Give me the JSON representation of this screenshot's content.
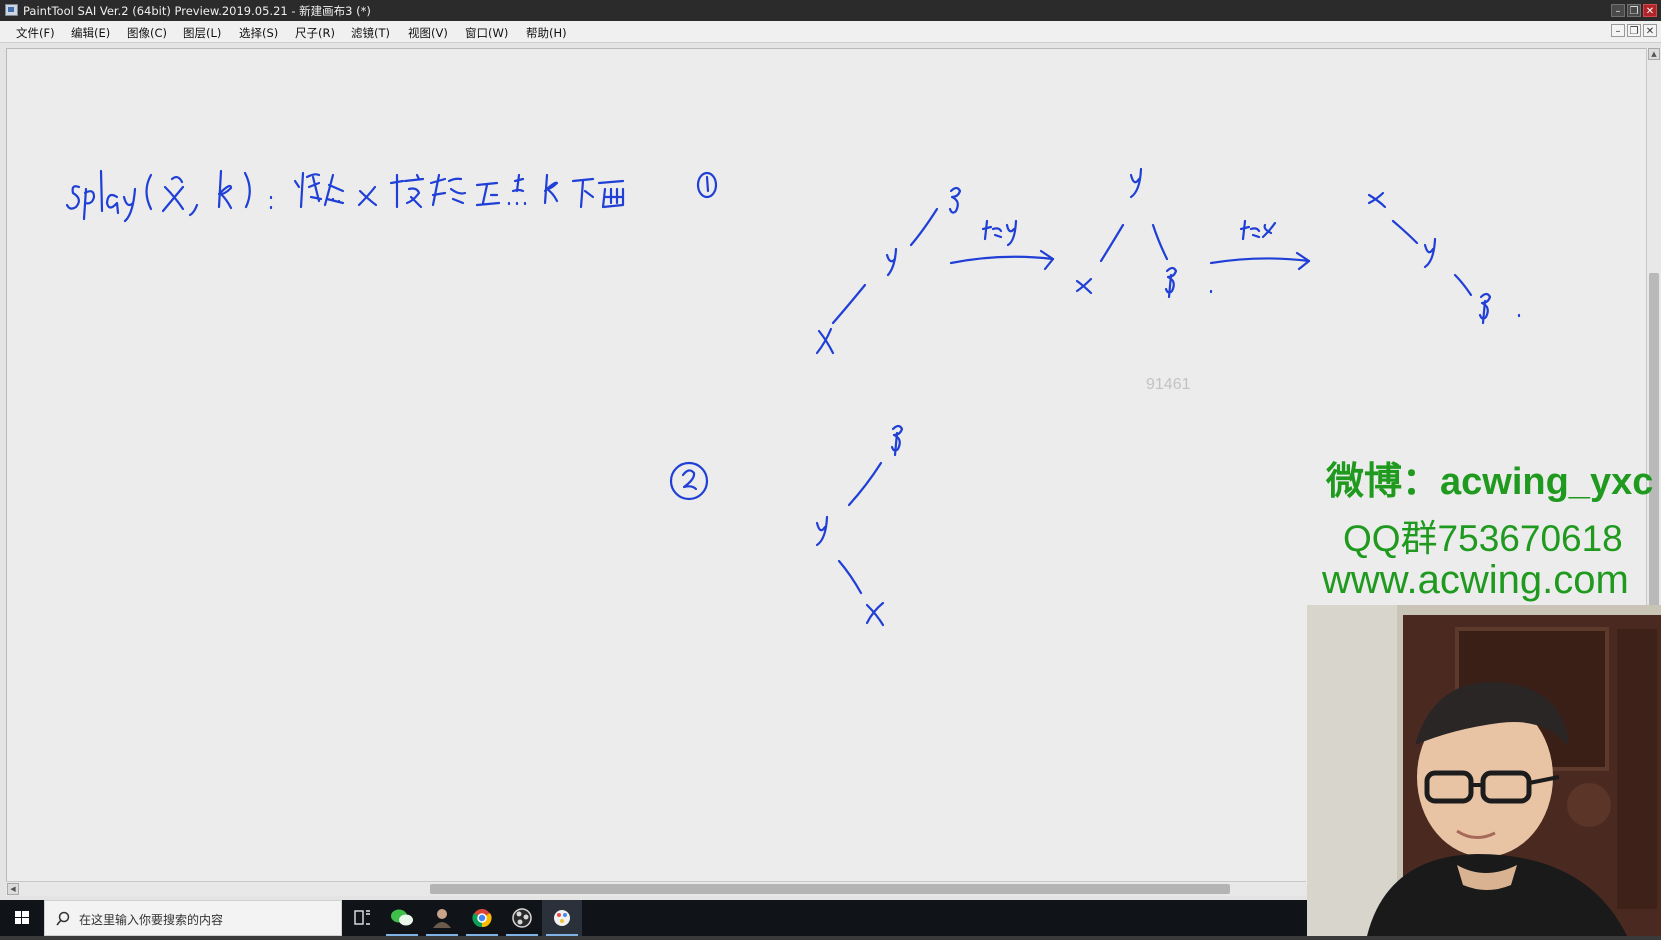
{
  "window": {
    "title": "PaintTool SAI Ver.2 (64bit) Preview.2019.05.21 - 新建画布3 (*)",
    "buttons": {
      "minimize": "–",
      "restore": "❐",
      "close": "✕"
    }
  },
  "menu": {
    "items": [
      "文件(F)",
      "编辑(E)",
      "图像(C)",
      "图层(L)",
      "选择(S)",
      "尺子(R)",
      "滤镜(T)",
      "视图(V)",
      "窗口(W)",
      "帮助(H)"
    ]
  },
  "canvas": {
    "watermark_number": "91461"
  },
  "overlay": {
    "weibo": "微博：acwing_yxc",
    "qq": "QQ群753670618",
    "site": "www.acwing.com"
  },
  "taskbar": {
    "search_placeholder": "在这里输入你要搜索的内容",
    "apps": [
      "task-view",
      "wechat",
      "user-app",
      "chrome",
      "obs",
      "paint-sai"
    ]
  },
  "colors": {
    "ink": "#1f3fd6",
    "overlay_text": "#1f9a1f",
    "taskbar": "#101318"
  }
}
